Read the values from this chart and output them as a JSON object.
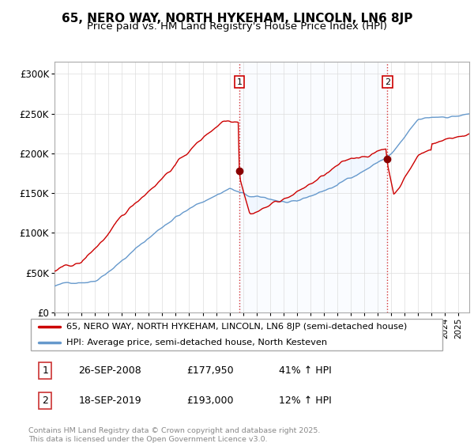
{
  "title": "65, NERO WAY, NORTH HYKEHAM, LINCOLN, LN6 8JP",
  "subtitle": "Price paid vs. HM Land Registry's House Price Index (HPI)",
  "ylabel_ticks": [
    "£0",
    "£50K",
    "£100K",
    "£150K",
    "£200K",
    "£250K",
    "£300K"
  ],
  "ytick_values": [
    0,
    50000,
    100000,
    150000,
    200000,
    250000,
    300000
  ],
  "ylim": [
    0,
    315000
  ],
  "xlim_start": 1995.0,
  "xlim_end": 2025.8,
  "red_color": "#cc0000",
  "blue_color": "#6699cc",
  "shaded_color": "#ddeeff",
  "marker1_date": 2008.73,
  "marker2_date": 2019.71,
  "legend_line1": "65, NERO WAY, NORTH HYKEHAM, LINCOLN, LN6 8JP (semi-detached house)",
  "legend_line2": "HPI: Average price, semi-detached house, North Kesteven",
  "annotation1_label": "1",
  "annotation1_date": "26-SEP-2008",
  "annotation1_price": "£177,950",
  "annotation1_hpi": "41% ↑ HPI",
  "annotation2_label": "2",
  "annotation2_date": "18-SEP-2019",
  "annotation2_price": "£193,000",
  "annotation2_hpi": "12% ↑ HPI",
  "footer": "Contains HM Land Registry data © Crown copyright and database right 2025.\nThis data is licensed under the Open Government Licence v3.0.",
  "title_fontsize": 11,
  "subtitle_fontsize": 9.5,
  "bg_color": "#f8f8f8"
}
